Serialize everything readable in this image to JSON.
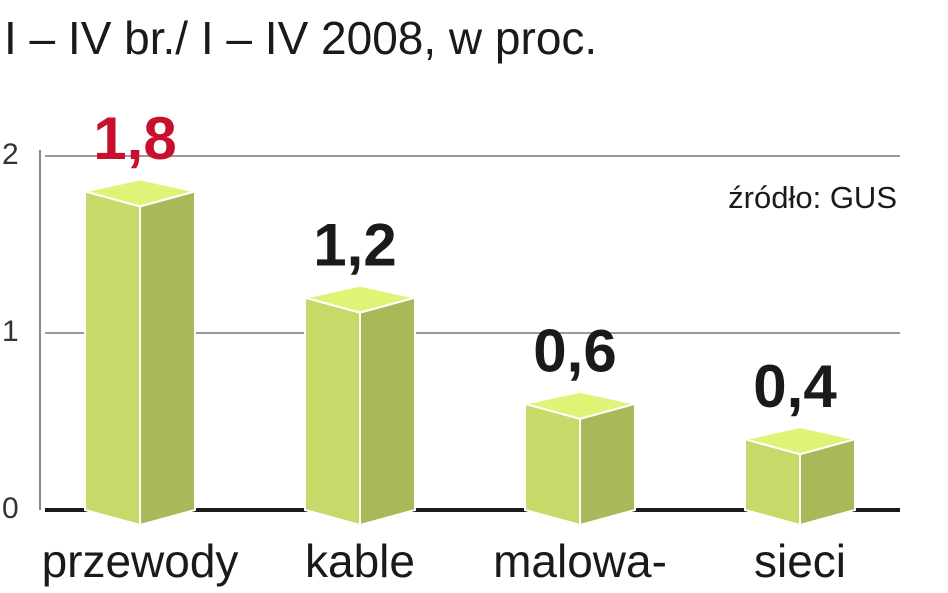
{
  "chart_data": {
    "type": "bar3d",
    "title": "I – IV br./ I – IV 2008, w proc.",
    "source": "źródło: GUS",
    "categories": [
      "przewody",
      "kable",
      "malowa-",
      "sieci"
    ],
    "values": [
      1.8,
      1.2,
      0.6,
      0.4
    ],
    "value_labels": [
      "1,8",
      "1,2",
      "0,6",
      "0,4"
    ],
    "label_colors": [
      "#c8102e",
      "#1a1a1a",
      "#1a1a1a",
      "#1a1a1a"
    ],
    "color": "#c8d96a",
    "ylim": [
      0,
      2
    ],
    "yticks": [
      0,
      1,
      2
    ],
    "grid": true
  }
}
